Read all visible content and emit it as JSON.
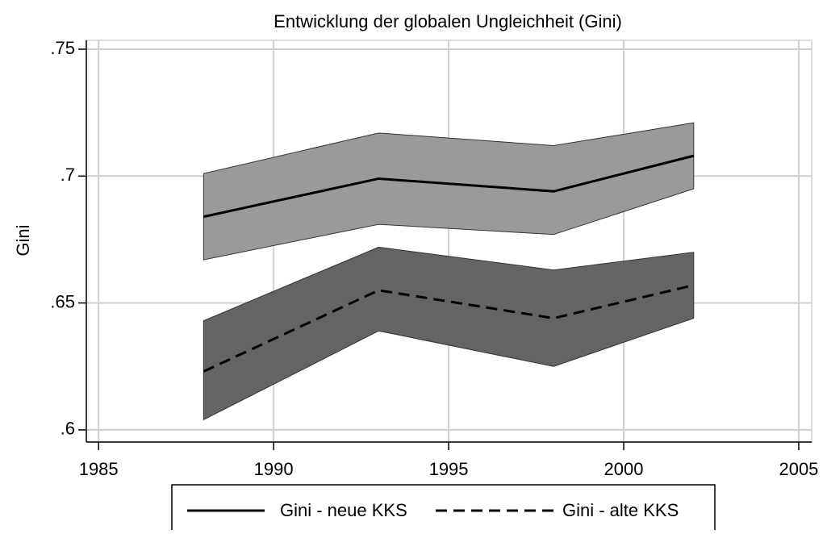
{
  "chart_data": {
    "type": "line-band",
    "title": "Entwicklung der globalen Ungleichheit (Gini)",
    "y_label": "Gini",
    "x": [
      1988,
      1993,
      1998,
      2002
    ],
    "series": [
      {
        "name": "Gini - neue KKS",
        "color": "#000000",
        "dash": "solid",
        "band_color": "#9a9a9a",
        "values": [
          0.684,
          0.699,
          0.694,
          0.708
        ],
        "ci_upper": [
          0.701,
          0.717,
          0.712,
          0.721
        ],
        "ci_lower": [
          0.667,
          0.681,
          0.677,
          0.695
        ]
      },
      {
        "name": "Gini - alte KKS",
        "color": "#000000",
        "dash": "dashed",
        "band_color": "#646464",
        "values": [
          0.623,
          0.655,
          0.644,
          0.657
        ],
        "ci_upper": [
          0.643,
          0.672,
          0.663,
          0.67
        ],
        "ci_lower": [
          0.604,
          0.639,
          0.625,
          0.644
        ]
      }
    ],
    "xlim": [
      1984.65,
      2005.37
    ],
    "xticks": [
      1985,
      1990,
      1995,
      2000,
      2005
    ],
    "ylim": [
      0.5952,
      0.7535
    ],
    "yticks": [
      {
        "value": 0.6,
        "label": ".6"
      },
      {
        "value": 0.65,
        "label": ".65"
      },
      {
        "value": 0.7,
        "label": ".7"
      },
      {
        "value": 0.75,
        "label": ".75"
      }
    ],
    "grid": true,
    "legend": "bottom"
  }
}
